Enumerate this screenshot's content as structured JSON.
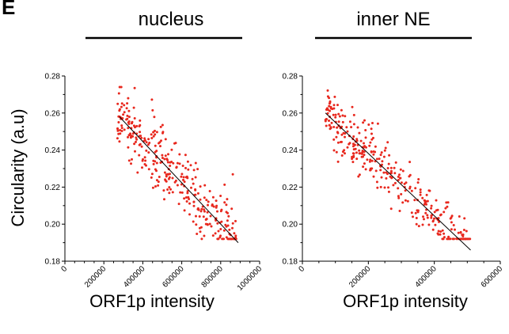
{
  "figure": {
    "panel_letter": "E",
    "ylabel": "Circularity (a.u)"
  },
  "chart_data": [
    {
      "type": "scatter",
      "title": "nucleus",
      "xlabel": "ORF1p intensity",
      "ylabel": "Circularity (a.u)",
      "xlim": [
        0,
        1000000
      ],
      "ylim": [
        0.18,
        0.28
      ],
      "x_ticks": [
        0,
        200000,
        400000,
        600000,
        800000,
        1000000
      ],
      "y_ticks": [
        0.18,
        0.2,
        0.22,
        0.24,
        0.26,
        0.28
      ],
      "y_tick_labels": [
        "0.18",
        "0.20",
        "0.22",
        "0.24",
        "0.26",
        "0.28"
      ],
      "point_color": "#e8281e",
      "trendline": {
        "x": [
          280000,
          890000
        ],
        "y": [
          0.258,
          0.19
        ]
      },
      "cloud": {
        "n": 330,
        "x_range": [
          270000,
          880000
        ],
        "noise": 0.009,
        "seed": 7
      }
    },
    {
      "type": "scatter",
      "title": "inner NE",
      "xlabel": "ORF1p intensity",
      "ylabel": "",
      "xlim": [
        0,
        600000
      ],
      "ylim": [
        0.18,
        0.28
      ],
      "x_ticks": [
        0,
        200000,
        400000,
        600000
      ],
      "y_ticks": [
        0.18,
        0.2,
        0.22,
        0.24,
        0.26,
        0.28
      ],
      "y_tick_labels": [
        "0.18",
        "0.20",
        "0.22",
        "0.24",
        "0.26",
        "0.28"
      ],
      "point_color": "#e8281e",
      "trendline": {
        "x": [
          70000,
          510000
        ],
        "y": [
          0.26,
          0.186
        ]
      },
      "cloud": {
        "n": 330,
        "x_range": [
          70000,
          510000
        ],
        "noise": 0.008,
        "seed": 19
      }
    }
  ]
}
